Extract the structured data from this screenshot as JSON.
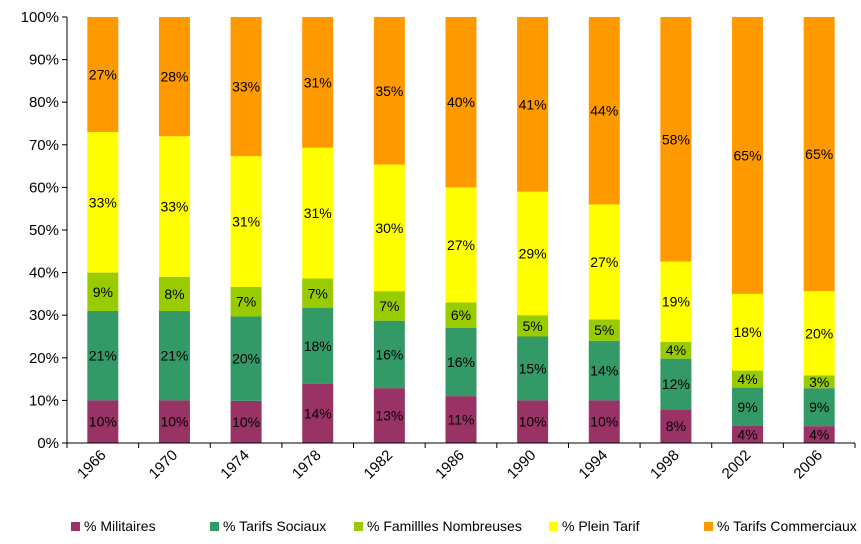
{
  "chart_data": {
    "type": "bar",
    "stacked": true,
    "percent_stacked": true,
    "categories": [
      "1966",
      "1970",
      "1974",
      "1978",
      "1982",
      "1986",
      "1990",
      "1994",
      "1998",
      "2002",
      "2006"
    ],
    "series": [
      {
        "name": "% Militaires",
        "color": "#993366",
        "values": [
          10,
          10,
          10,
          14,
          13,
          11,
          10,
          10,
          8,
          4,
          4
        ],
        "labels": [
          "10%",
          "10%",
          "10%",
          "14%",
          "13%",
          "11%",
          "10%",
          "10%",
          "8%",
          "4%",
          "4%"
        ]
      },
      {
        "name": "% Tarifs Sociaux",
        "color": "#339966",
        "values": [
          21,
          21,
          20,
          18,
          16,
          16,
          15,
          14,
          12,
          9,
          9
        ],
        "labels": [
          "21%",
          "21%",
          "20%",
          "18%",
          "16%",
          "16%",
          "15%",
          "14%",
          "12%",
          "9%",
          "9%"
        ]
      },
      {
        "name": "% Familles Nombreuses",
        "color": "#99CC00",
        "values": [
          9,
          8,
          7,
          7,
          7,
          6,
          5,
          5,
          4,
          4,
          3
        ],
        "labels": [
          "9%",
          "8%",
          "7%",
          "7%",
          "7%",
          "6%",
          "5%",
          "5%",
          "4%",
          "4%",
          "3%"
        ]
      },
      {
        "name": "% Plein Tarif",
        "color": "#FFFF00",
        "values": [
          33,
          33,
          31,
          31,
          30,
          27,
          29,
          27,
          19,
          18,
          20
        ],
        "labels": [
          "33%",
          "33%",
          "31%",
          "31%",
          "30%",
          "27%",
          "29%",
          "27%",
          "19%",
          "18%",
          "20%"
        ]
      },
      {
        "name": "% Tarifs Commerciaux",
        "color": "#FF9900",
        "values": [
          27,
          28,
          33,
          31,
          35,
          40,
          41,
          44,
          58,
          65,
          65
        ],
        "labels": [
          "27%",
          "28%",
          "33%",
          "31%",
          "35%",
          "40%",
          "41%",
          "44%",
          "58%",
          "65%",
          "65%"
        ]
      }
    ],
    "legend_labels": [
      "% Militaires",
      "% Tarifs Sociaux",
      "% Famillles Nombreuses",
      "% Plein Tarif",
      "% Tarifs Commerciaux"
    ],
    "y_ticks": [
      "0%",
      "10%",
      "20%",
      "30%",
      "40%",
      "50%",
      "60%",
      "70%",
      "80%",
      "90%",
      "100%"
    ],
    "ylim": [
      0,
      100
    ],
    "legend_position": "bottom",
    "grid": false
  }
}
